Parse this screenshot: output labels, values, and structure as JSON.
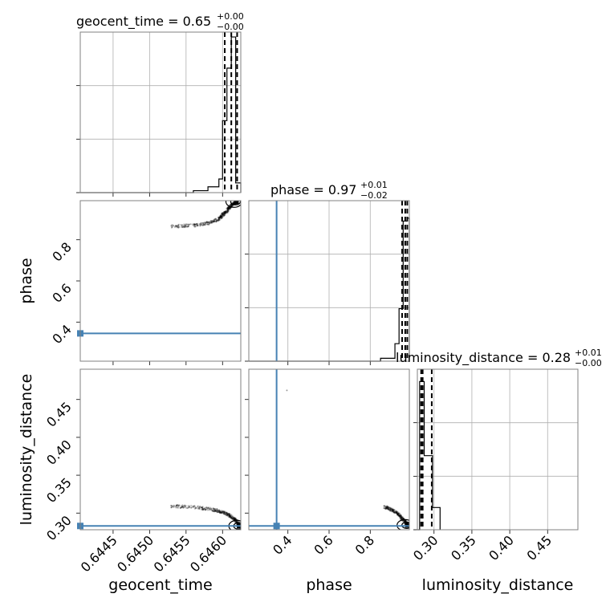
{
  "chart_data": [
    {
      "type": "histogram",
      "panel": "geocent_time-1d",
      "title": {
        "main": "geocent_time = 0.65",
        "sup": "+0.00",
        "sub": "−0.00"
      },
      "xlabel": "geocent_time",
      "xlim": [
        0.64405,
        0.64625
      ],
      "xticks": [
        0.6445,
        0.645,
        0.6455,
        0.646
      ],
      "xtick_labels": [
        "0.6445",
        "0.6450",
        "0.6455",
        "0.6460"
      ],
      "bins": [
        0.6456,
        0.6458,
        0.64595,
        0.646,
        0.64606,
        0.64612,
        0.64618,
        0.64625
      ],
      "counts": [
        0.02,
        0.06,
        0.14,
        0.74,
        1.28,
        1.6,
        0.1
      ],
      "ymax": 1.65,
      "quantiles": [
        0.64603,
        0.64612,
        0.6462
      ],
      "show_y_tick_labels": false
    },
    {
      "type": "histogram",
      "panel": "phase-1d",
      "title": {
        "main": "phase = 0.97",
        "sup": "+0.01",
        "sub": "−0.02"
      },
      "xlabel": "phase",
      "xlim": [
        0.21,
        0.99
      ],
      "xticks": [
        0.4,
        0.6,
        0.8
      ],
      "xtick_labels": [
        "0.4",
        "0.6",
        "0.8"
      ],
      "bins": [
        0.85,
        0.92,
        0.94,
        0.96,
        0.98,
        0.99
      ],
      "counts": [
        0.02,
        0.12,
        0.36,
        0.96,
        0.98
      ],
      "ymax": 1.1,
      "quantiles": [
        0.955,
        0.97,
        0.98
      ],
      "truth": 0.345,
      "show_y_tick_labels": false
    },
    {
      "type": "histogram",
      "panel": "luminosity_distance-1d",
      "title": {
        "main": "luminosity_distance = 0.28",
        "sup": "+0.01",
        "sub": "−0.00"
      },
      "xlabel": "luminosity_distance",
      "xlim": [
        0.278,
        0.49
      ],
      "xticks": [
        0.3,
        0.35,
        0.4,
        0.45
      ],
      "xtick_labels": [
        "0.30",
        "0.35",
        "0.40",
        "0.45"
      ],
      "bins": [
        0.281,
        0.287,
        0.298,
        0.308
      ],
      "counts": [
        1.2,
        0.6,
        0.18
      ],
      "ymax": 1.3,
      "quantiles": [
        0.283,
        0.285,
        0.297
      ],
      "show_y_tick_labels": false
    },
    {
      "type": "scatter",
      "panel": "geocent_time-vs-phase",
      "xlim": [
        0.64405,
        0.64625
      ],
      "ylim": [
        0.21,
        0.99
      ],
      "ylabel": "phase",
      "yticks": [
        0.4,
        0.6,
        0.8
      ],
      "ytick_labels": [
        "0.4",
        "0.6",
        "0.8"
      ],
      "truth": {
        "x": 0.64405,
        "y": 0.345
      },
      "sample_path": [
        [
          0.6453,
          0.865
        ],
        [
          0.6456,
          0.87
        ],
        [
          0.6458,
          0.88
        ],
        [
          0.64595,
          0.9
        ],
        [
          0.646,
          0.92
        ],
        [
          0.64606,
          0.94
        ],
        [
          0.6461,
          0.96
        ],
        [
          0.64615,
          0.975
        ],
        [
          0.6462,
          0.985
        ]
      ]
    },
    {
      "type": "scatter",
      "panel": "geocent_time-vs-luminosity_distance",
      "xlim": [
        0.64405,
        0.64625
      ],
      "ylim": [
        0.278,
        0.49
      ],
      "ylabel": "luminosity_distance",
      "yticks": [
        0.3,
        0.35,
        0.4,
        0.45
      ],
      "ytick_labels": [
        "0.30",
        "0.35",
        "0.40",
        "0.45"
      ],
      "truth": {
        "x": 0.64405,
        "y": 0.283
      },
      "sample_path": [
        [
          0.6453,
          0.309
        ],
        [
          0.6456,
          0.308
        ],
        [
          0.64585,
          0.305
        ],
        [
          0.64598,
          0.302
        ],
        [
          0.64608,
          0.298
        ],
        [
          0.64615,
          0.293
        ],
        [
          0.6462,
          0.288
        ],
        [
          0.64624,
          0.283
        ]
      ]
    },
    {
      "type": "scatter",
      "panel": "phase-vs-luminosity_distance",
      "xlim": [
        0.21,
        0.99
      ],
      "ylim": [
        0.278,
        0.49
      ],
      "truth": {
        "x": 0.345,
        "y": 0.283
      },
      "outlier": [
        0.395,
        0.462
      ],
      "sample_path": [
        [
          0.87,
          0.308
        ],
        [
          0.9,
          0.305
        ],
        [
          0.93,
          0.3
        ],
        [
          0.95,
          0.294
        ],
        [
          0.97,
          0.288
        ],
        [
          0.985,
          0.284
        ]
      ]
    }
  ]
}
